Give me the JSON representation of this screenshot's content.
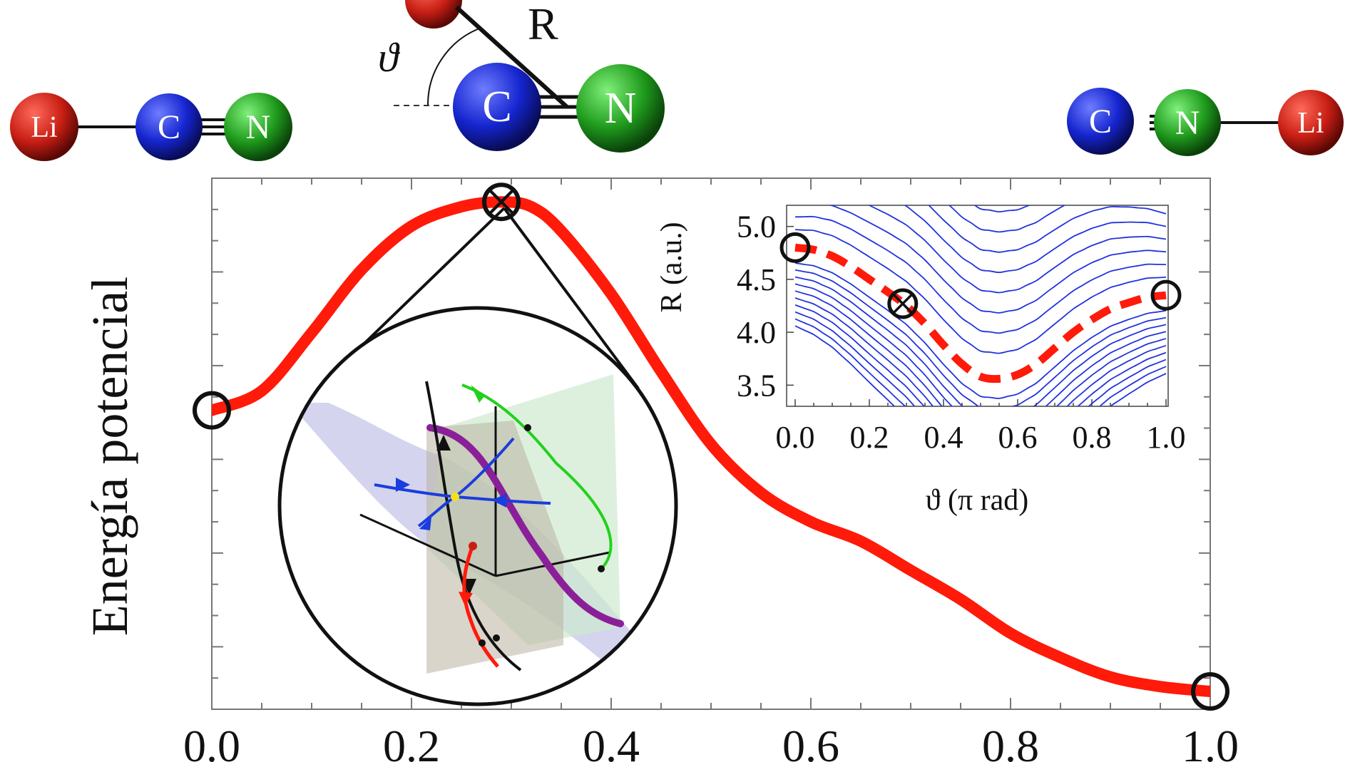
{
  "molecules": {
    "left": {
      "atoms": [
        "Li",
        "C",
        "N"
      ]
    },
    "middle": {
      "atoms": [
        "C",
        "N"
      ],
      "label_R": "R",
      "label_theta": "ϑ"
    },
    "right": {
      "atoms": [
        "C",
        "N",
        "Li"
      ]
    }
  },
  "colors": {
    "li": "#c81e14",
    "c": "#1525cf",
    "n": "#1f9a1c",
    "curve": "#ff1a0a",
    "contour": "#2233dd"
  },
  "chart_data": [
    {
      "type": "line",
      "ylabel": "Energía potencial",
      "xlabel": "",
      "x_ticks": [
        "0.0",
        "0.2",
        "0.4",
        "0.6",
        "0.8",
        "1.0"
      ],
      "xlim": [
        0,
        1
      ],
      "y_ticks_labeled": false,
      "series": [
        {
          "x": [
            0.0,
            0.05,
            0.1,
            0.15,
            0.2,
            0.25,
            0.29,
            0.32,
            0.35,
            0.4,
            0.45,
            0.5,
            0.55,
            0.6,
            0.65,
            0.7,
            0.75,
            0.8,
            0.85,
            0.9,
            0.95,
            1.0
          ],
          "y": [
            0.58,
            0.62,
            0.74,
            0.87,
            0.96,
            1.0,
            1.01,
            1.0,
            0.95,
            0.82,
            0.66,
            0.51,
            0.41,
            0.35,
            0.31,
            0.25,
            0.19,
            0.12,
            0.07,
            0.03,
            0.01,
            0.0
          ]
        }
      ],
      "markers": [
        {
          "x": 0.0,
          "y": 0.58,
          "style": "circle"
        },
        {
          "x": 0.29,
          "y": 1.01,
          "style": "crossed-circle"
        },
        {
          "x": 1.0,
          "y": 0.0,
          "style": "circle"
        }
      ]
    },
    {
      "type": "line",
      "xlabel": "ϑ (π rad)",
      "ylabel": "R (a.u.)",
      "x_ticks": [
        "0.0",
        "0.2",
        "0.4",
        "0.6",
        "0.8",
        "1.0"
      ],
      "y_ticks": [
        "3.5",
        "4.0",
        "4.5",
        "5.0"
      ],
      "xlim": [
        0,
        1
      ],
      "ylim": [
        3.3,
        5.2
      ],
      "series": [
        {
          "x": [
            0.0,
            0.05,
            0.1,
            0.15,
            0.2,
            0.25,
            0.3,
            0.35,
            0.4,
            0.45,
            0.5,
            0.55,
            0.6,
            0.65,
            0.7,
            0.75,
            0.8,
            0.85,
            0.9,
            0.95,
            1.0
          ],
          "y": [
            4.8,
            4.78,
            4.72,
            4.62,
            4.5,
            4.38,
            4.25,
            4.08,
            3.88,
            3.7,
            3.58,
            3.56,
            3.6,
            3.7,
            3.85,
            4.0,
            4.12,
            4.22,
            4.28,
            4.33,
            4.35
          ]
        }
      ],
      "markers": [
        {
          "x": 0.0,
          "y": 4.8,
          "style": "circle"
        },
        {
          "x": 0.29,
          "y": 4.27,
          "style": "crossed-circle"
        },
        {
          "x": 1.0,
          "y": 4.35,
          "style": "circle"
        }
      ],
      "contours": "blue iso-energy lines"
    }
  ]
}
